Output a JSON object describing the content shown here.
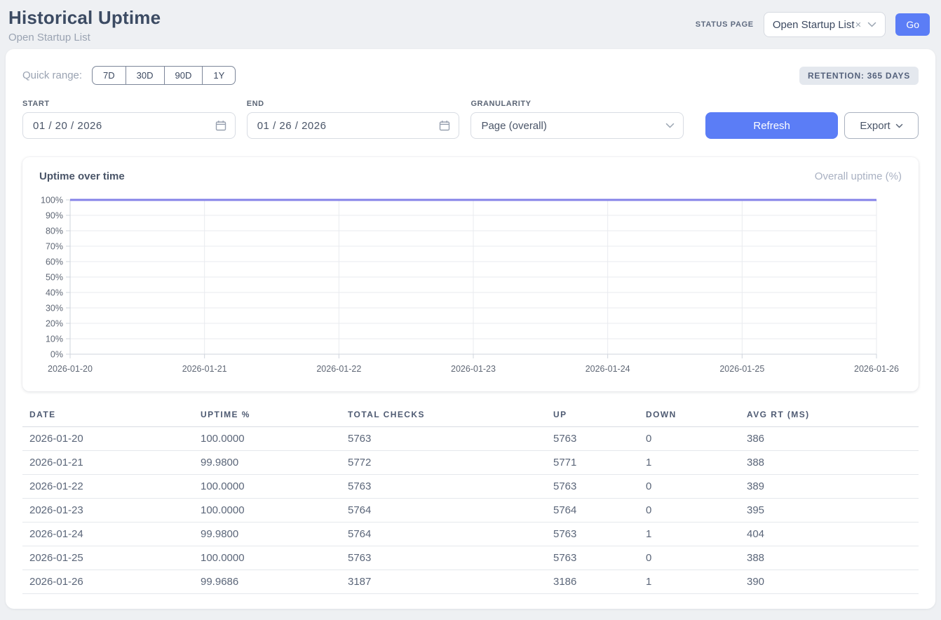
{
  "header": {
    "title": "Historical Uptime",
    "subtitle": "Open Startup List",
    "status_page_label": "STATUS PAGE",
    "status_page_value": "Open Startup List",
    "clear_icon": "×",
    "go_label": "Go"
  },
  "filters": {
    "quick_range_label": "Quick range:",
    "quick_ranges": [
      "7D",
      "30D",
      "90D",
      "1Y"
    ],
    "retention_badge": "RETENTION: 365 DAYS",
    "start_label": "START",
    "start_value": "01 / 20 / 2026",
    "end_label": "END",
    "end_value": "01 / 26 / 2026",
    "granularity_label": "GRANULARITY",
    "granularity_value": "Page (overall)",
    "refresh_label": "Refresh",
    "export_label": "Export"
  },
  "chart": {
    "title": "Uptime over time",
    "legend": "Overall uptime (%)"
  },
  "chart_data": {
    "type": "line",
    "title": "Uptime over time",
    "categories": [
      "2026-01-20",
      "2026-01-21",
      "2026-01-22",
      "2026-01-23",
      "2026-01-24",
      "2026-01-25",
      "2026-01-26"
    ],
    "series": [
      {
        "name": "Overall uptime (%)",
        "values": [
          100.0,
          99.98,
          100.0,
          100.0,
          99.98,
          100.0,
          99.9686
        ]
      }
    ],
    "ylim": [
      0,
      100
    ],
    "y_tick_step": 10,
    "y_tick_suffix": "%",
    "grid": true,
    "legend_position": "top-right",
    "line_color": "#8583e8"
  },
  "table": {
    "columns": [
      "DATE",
      "UPTIME %",
      "TOTAL CHECKS",
      "UP",
      "DOWN",
      "AVG RT (MS)"
    ],
    "rows": [
      [
        "2026-01-20",
        "100.0000",
        "5763",
        "5763",
        "0",
        "386"
      ],
      [
        "2026-01-21",
        "99.9800",
        "5772",
        "5771",
        "1",
        "388"
      ],
      [
        "2026-01-22",
        "100.0000",
        "5763",
        "5763",
        "0",
        "389"
      ],
      [
        "2026-01-23",
        "100.0000",
        "5764",
        "5764",
        "0",
        "395"
      ],
      [
        "2026-01-24",
        "99.9800",
        "5764",
        "5763",
        "1",
        "404"
      ],
      [
        "2026-01-25",
        "100.0000",
        "5763",
        "5763",
        "0",
        "388"
      ],
      [
        "2026-01-26",
        "99.9686",
        "3187",
        "3186",
        "1",
        "390"
      ]
    ]
  },
  "colors": {
    "accent": "#5b7df6",
    "chart_line": "#8583e8"
  }
}
